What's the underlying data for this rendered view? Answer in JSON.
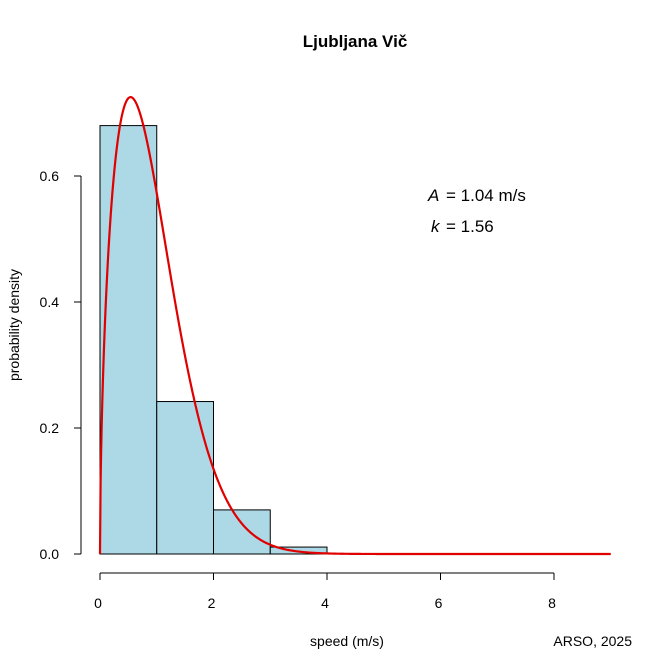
{
  "chart_data": {
    "type": "bar",
    "title": "Ljubljana Vič",
    "xlabel": "speed (m/s)",
    "ylabel": "probability density",
    "xlim": [
      0,
      8
    ],
    "ylim": [
      0,
      0.6
    ],
    "x_ticks": [
      0,
      2,
      4,
      6,
      8
    ],
    "x_tick_labels": [
      "0",
      "2",
      "4",
      "6",
      "8"
    ],
    "y_ticks": [
      0,
      0.2,
      0.4,
      0.6
    ],
    "y_tick_labels": [
      "0.0",
      "0.2",
      "0.4",
      "0.6"
    ],
    "bins": [
      {
        "start": 0,
        "end": 1,
        "value": 0.68
      },
      {
        "start": 1,
        "end": 2,
        "value": 0.242
      },
      {
        "start": 2,
        "end": 3,
        "value": 0.07
      },
      {
        "start": 3,
        "end": 4,
        "value": 0.011
      }
    ],
    "fit": {
      "type": "weibull",
      "A": 1.04,
      "k": 1.56,
      "x_max": 9,
      "color": "#e00000"
    },
    "bar_fill": "#add8e6",
    "bar_stroke": "#000000",
    "annotations": {
      "a_symbol": "A",
      "a_text": "=  1.04 m/s",
      "k_symbol": "k",
      "k_text": "=  1.56"
    },
    "credit": "ARSO, 2025"
  }
}
